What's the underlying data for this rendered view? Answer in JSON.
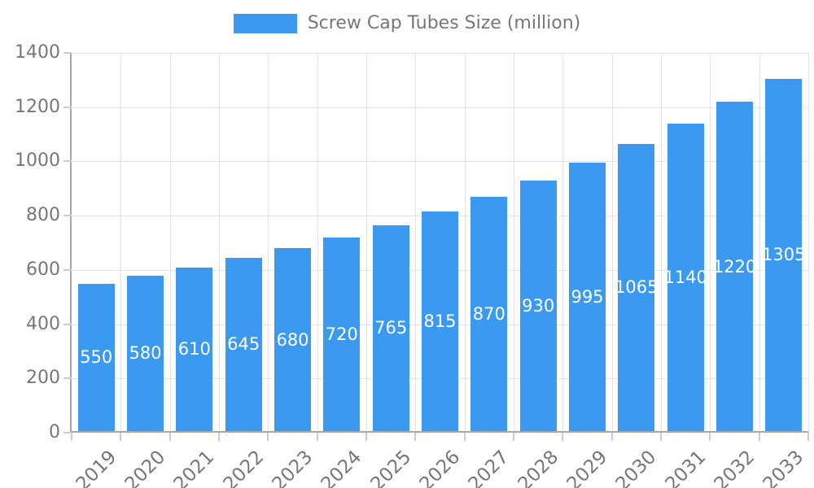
{
  "legend": {
    "label": "Screw Cap Tubes Size (million)"
  },
  "chart_data": {
    "type": "bar",
    "title": "",
    "xlabel": "",
    "ylabel": "",
    "categories": [
      "2019",
      "2020",
      "2021",
      "2022",
      "2023",
      "2024",
      "2025",
      "2026",
      "2027",
      "2028",
      "2029",
      "2030",
      "2031",
      "2032",
      "2033"
    ],
    "series": [
      {
        "name": "Screw Cap Tubes Size (million)",
        "values": [
          550,
          580,
          610,
          645,
          680,
          720,
          765,
          815,
          870,
          930,
          995,
          1065,
          1140,
          1220,
          1305
        ]
      }
    ],
    "bar_labels": [
      "550",
      "580",
      "610",
      "645",
      "680",
      "720",
      "765",
      "815",
      "870",
      "930",
      "995",
      "1065",
      "1140",
      "1220",
      "1305"
    ],
    "ylim": [
      0,
      1400
    ],
    "yticks": [
      0,
      200,
      400,
      600,
      800,
      1000,
      1200,
      1400
    ],
    "grid": true,
    "legend_position": "top-center",
    "bar_color": "#3B9AF0",
    "bar_label_color": "#ffffff",
    "axis_label_color": "#777777",
    "gridline_color": "#e3e3e3",
    "tick_color": "#cccccc",
    "axis_line_color": "#a8a8a8",
    "background_color": "#ffffff"
  }
}
